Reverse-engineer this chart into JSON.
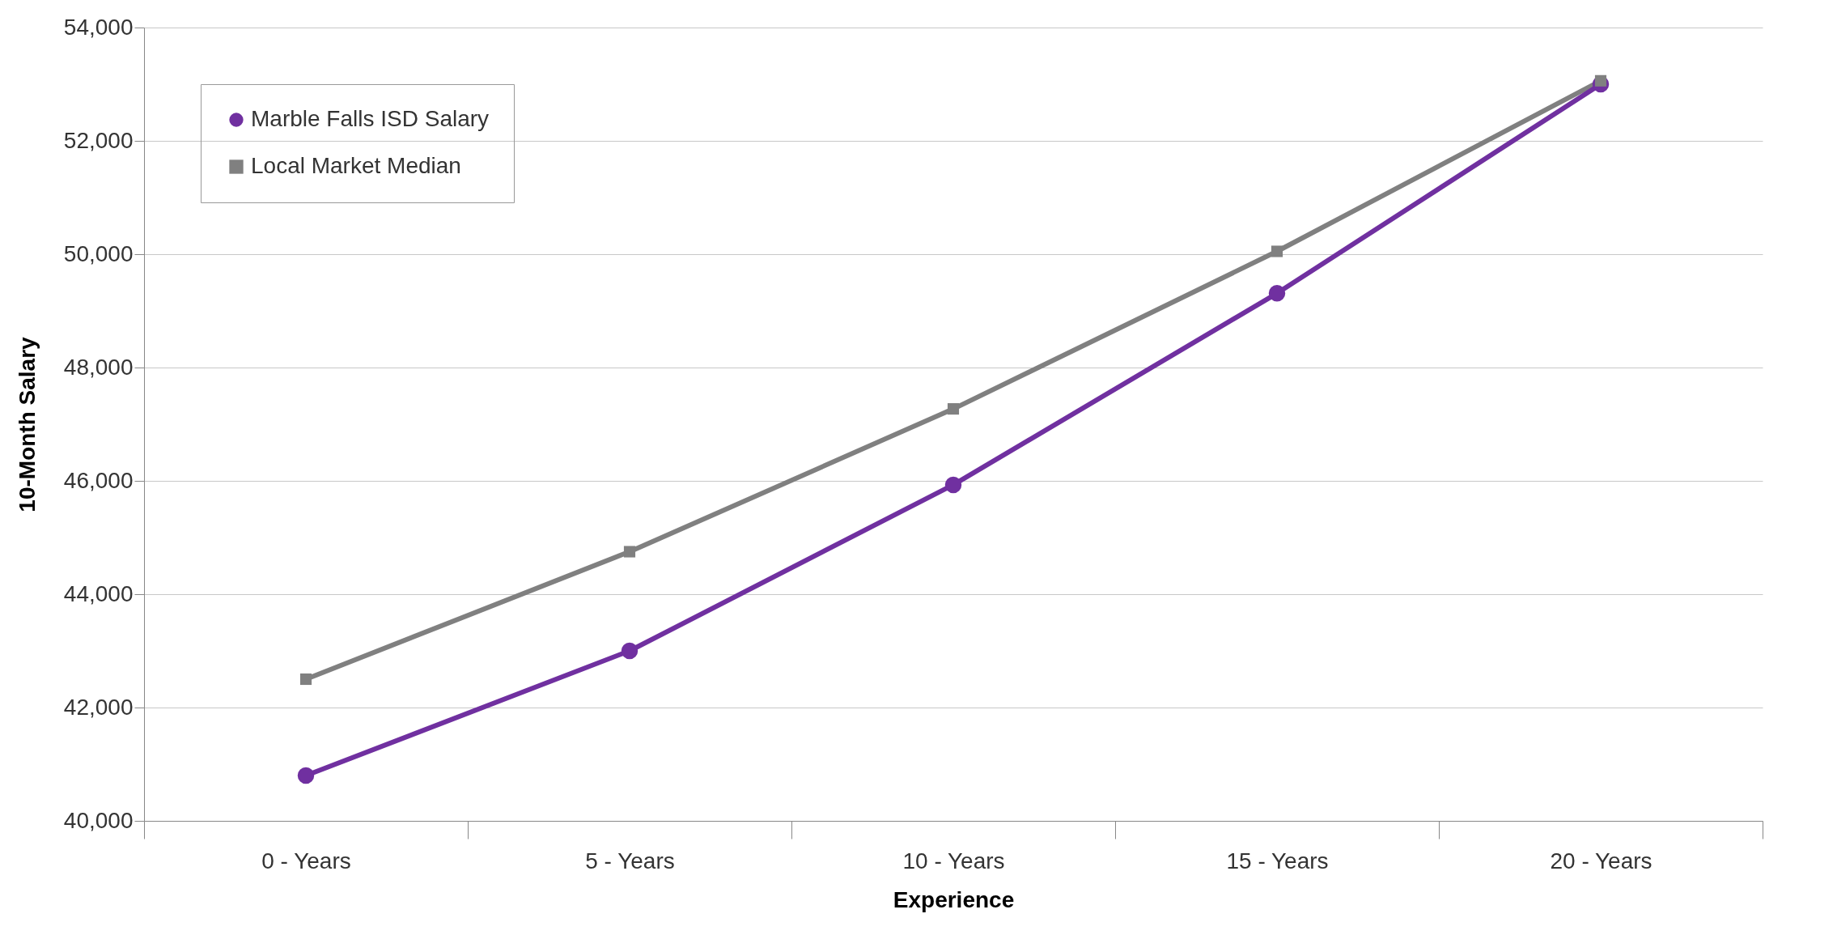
{
  "chart_data": {
    "type": "line",
    "xlabel": "Experience",
    "ylabel": "10-Month Salary",
    "categories": [
      "0 - Years",
      "5 - Years",
      "10 - Years",
      "15 - Years",
      "20 - Years"
    ],
    "series": [
      {
        "name": "Marble Falls ISD Salary",
        "color": "#7030a0",
        "marker": "circle",
        "values": [
          40800,
          43000,
          45930,
          49310,
          53000
        ]
      },
      {
        "name": "Local Market Median",
        "color": "#808080",
        "marker": "square",
        "values": [
          42500,
          44750,
          47270,
          50050,
          53060
        ]
      }
    ],
    "ylim": [
      40000,
      54000
    ],
    "yticks": [
      {
        "value": 40000,
        "label": "40,000"
      },
      {
        "value": 42000,
        "label": "42,000"
      },
      {
        "value": 44000,
        "label": "44,000"
      },
      {
        "value": 46000,
        "label": "46,000"
      },
      {
        "value": 48000,
        "label": "48,000"
      },
      {
        "value": 50000,
        "label": "50,000"
      },
      {
        "value": 52000,
        "label": "52,000"
      },
      {
        "value": 54000,
        "label": "54,000"
      }
    ],
    "grid": "y",
    "legend": "top left",
    "line_style": "solid"
  }
}
